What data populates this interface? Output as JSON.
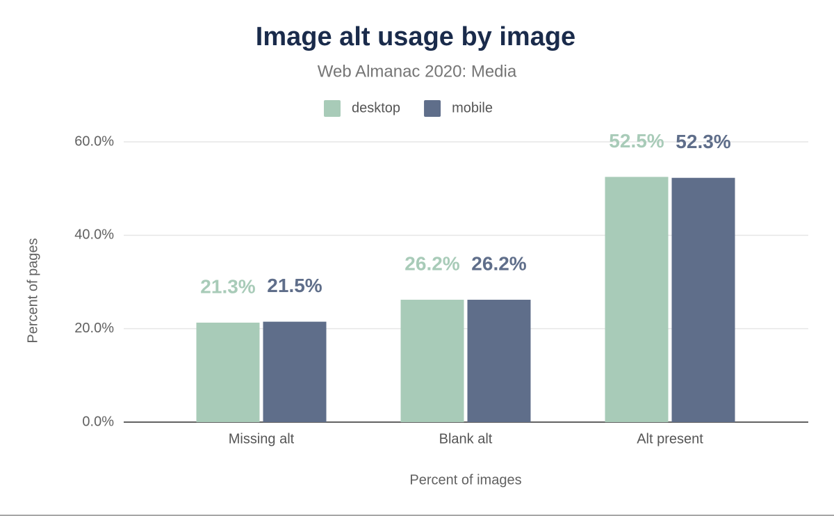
{
  "chart_data": {
    "type": "bar",
    "title": "Image alt usage by image",
    "subtitle": "Web Almanac 2020: Media",
    "x_label": "Percent of images",
    "y_label": "Percent of pages",
    "categories": [
      "Missing alt",
      "Blank alt",
      "Alt present"
    ],
    "series": [
      {
        "name": "desktop",
        "color": "#a8cbb8",
        "values": [
          21.3,
          26.2,
          52.5
        ],
        "value_labels": [
          "21.3%",
          "26.2%",
          "52.5%"
        ]
      },
      {
        "name": "mobile",
        "color": "#5f6e8a",
        "values": [
          21.5,
          26.2,
          52.3
        ],
        "value_labels": [
          "21.5%",
          "26.2%",
          "52.3%"
        ]
      }
    ],
    "ylim": [
      0,
      60
    ],
    "yticks": [
      {
        "value": 0,
        "label": "0.0%"
      },
      {
        "value": 20,
        "label": "20.0%"
      },
      {
        "value": 40,
        "label": "40.0%"
      },
      {
        "value": 60,
        "label": "60.0%"
      }
    ],
    "grid": true,
    "legend": "top"
  }
}
